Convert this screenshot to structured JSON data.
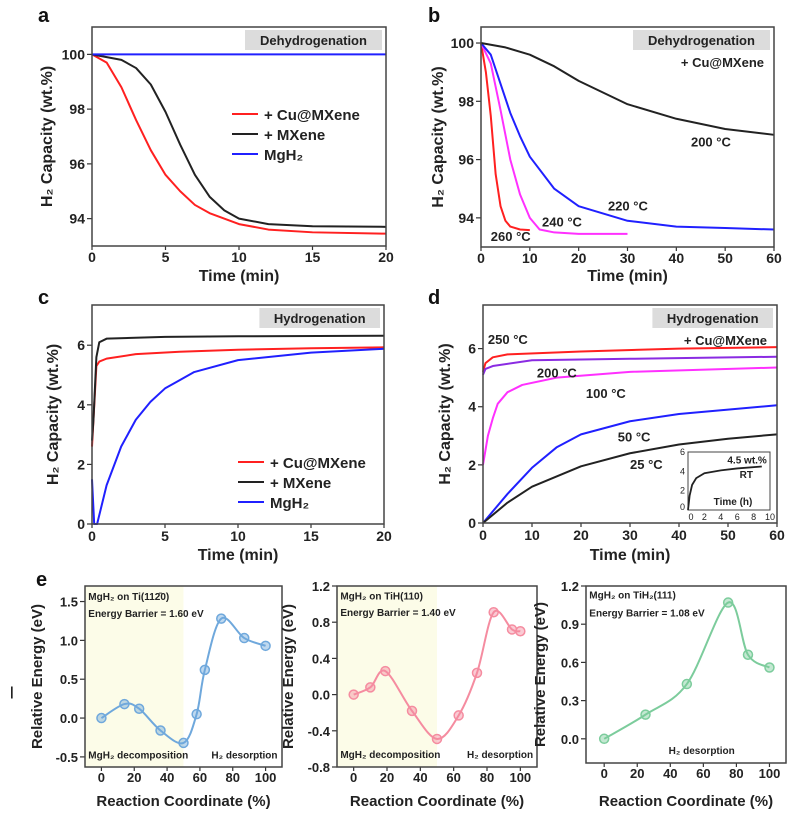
{
  "chart_data": [
    {
      "id": "a",
      "type": "line",
      "panel_label": "a",
      "xlim": [
        0,
        20
      ],
      "ylim": [
        93,
        101
      ],
      "xticks": [
        0,
        5,
        10,
        15,
        20
      ],
      "yticks": [
        94,
        96,
        98,
        100
      ],
      "xlabel": "Time (min)",
      "ylabel": "H₂ Capacity (wt.%)",
      "tag": "Dehydrogenation",
      "legend": "middle-right",
      "series": [
        {
          "name": "+ Cu@MXene",
          "color": "#ff2020",
          "points": [
            [
              0,
              100
            ],
            [
              1,
              99.7
            ],
            [
              2,
              98.8
            ],
            [
              3,
              97.6
            ],
            [
              4,
              96.5
            ],
            [
              5,
              95.6
            ],
            [
              6,
              95.0
            ],
            [
              7,
              94.5
            ],
            [
              8,
              94.2
            ],
            [
              10,
              93.8
            ],
            [
              12,
              93.6
            ],
            [
              15,
              93.5
            ],
            [
              20,
              93.45
            ]
          ]
        },
        {
          "name": "+ MXene",
          "color": "#222222",
          "points": [
            [
              0,
              100
            ],
            [
              2,
              99.8
            ],
            [
              3,
              99.5
            ],
            [
              4,
              98.9
            ],
            [
              5,
              97.9
            ],
            [
              6,
              96.7
            ],
            [
              7,
              95.6
            ],
            [
              8,
              94.8
            ],
            [
              9,
              94.3
            ],
            [
              10,
              94.0
            ],
            [
              12,
              93.8
            ],
            [
              15,
              93.72
            ],
            [
              20,
              93.7
            ]
          ]
        },
        {
          "name": "MgH₂",
          "color": "#2020ff",
          "points": [
            [
              0,
              100
            ],
            [
              20,
              100
            ]
          ]
        }
      ],
      "annotations": []
    },
    {
      "id": "b",
      "type": "line",
      "panel_label": "b",
      "xlim": [
        0,
        60
      ],
      "ylim": [
        93,
        100.55
      ],
      "xticks": [
        0,
        10,
        20,
        30,
        40,
        50,
        60
      ],
      "yticks": [
        94,
        96,
        98,
        100
      ],
      "xlabel": "Time (min)",
      "ylabel": "H₂ Capacity (wt.%)",
      "tag": "Dehydrogenation",
      "subtag": "+ Cu@MXene",
      "series": [
        {
          "name": "260 °C",
          "color": "#ff2020",
          "points": [
            [
              0,
              100
            ],
            [
              1,
              99.0
            ],
            [
              2,
              97.5
            ],
            [
              3,
              95.5
            ],
            [
              4,
              94.4
            ],
            [
              5,
              93.9
            ],
            [
              6,
              93.7
            ],
            [
              8,
              93.6
            ],
            [
              10,
              93.58
            ]
          ]
        },
        {
          "name": "240 °C",
          "color": "#ff30ff",
          "points": [
            [
              0,
              100
            ],
            [
              2,
              99.3
            ],
            [
              4,
              97.7
            ],
            [
              6,
              96.0
            ],
            [
              8,
              94.8
            ],
            [
              10,
              94.0
            ],
            [
              12,
              93.6
            ],
            [
              15,
              93.5
            ],
            [
              20,
              93.45
            ],
            [
              30,
              93.45
            ]
          ]
        },
        {
          "name": "220 °C",
          "color": "#2020ff",
          "points": [
            [
              0,
              100
            ],
            [
              2,
              99.6
            ],
            [
              4,
              98.6
            ],
            [
              6,
              97.6
            ],
            [
              8,
              96.8
            ],
            [
              10,
              96.1
            ],
            [
              15,
              95.0
            ],
            [
              20,
              94.4
            ],
            [
              30,
              93.9
            ],
            [
              40,
              93.7
            ],
            [
              50,
              93.65
            ],
            [
              60,
              93.6
            ]
          ]
        },
        {
          "name": "200 °C",
          "color": "#222222",
          "points": [
            [
              0,
              100
            ],
            [
              5,
              99.85
            ],
            [
              10,
              99.6
            ],
            [
              15,
              99.2
            ],
            [
              20,
              98.7
            ],
            [
              30,
              97.9
            ],
            [
              40,
              97.4
            ],
            [
              50,
              97.05
            ],
            [
              60,
              96.85
            ]
          ]
        }
      ],
      "annotations": [
        {
          "text": "200 °C",
          "x": 43,
          "y": 96.45
        },
        {
          "text": "220 °C",
          "x": 26,
          "y": 94.25
        },
        {
          "text": "240 °C",
          "x": 12.5,
          "y": 93.7
        },
        {
          "text": "260 °C",
          "x": 2,
          "y": 93.2
        }
      ]
    },
    {
      "id": "c",
      "type": "line",
      "panel_label": "c",
      "xlim": [
        0,
        20
      ],
      "ylim": [
        0,
        7.35
      ],
      "xticks": [
        0,
        5,
        10,
        15,
        20
      ],
      "yticks": [
        0,
        2,
        4,
        6
      ],
      "xlabel": "Time (min)",
      "ylabel": "H₂ Capacity (wt.%)",
      "tag": "Hydrogenation",
      "legend": "bottom-right",
      "series": [
        {
          "name": "+ Cu@MXene",
          "color": "#ff2020",
          "points": [
            [
              0,
              2.6
            ],
            [
              0.1,
              3.5
            ],
            [
              0.3,
              5.3
            ],
            [
              0.5,
              5.45
            ],
            [
              1,
              5.55
            ],
            [
              3,
              5.7
            ],
            [
              6,
              5.78
            ],
            [
              10,
              5.85
            ],
            [
              15,
              5.9
            ],
            [
              20,
              5.93
            ]
          ]
        },
        {
          "name": "+ MXene",
          "color": "#222222",
          "points": [
            [
              0,
              2.8
            ],
            [
              0.1,
              3.5
            ],
            [
              0.3,
              5.6
            ],
            [
              0.5,
              6.1
            ],
            [
              1,
              6.22
            ],
            [
              5,
              6.28
            ],
            [
              10,
              6.3
            ],
            [
              20,
              6.32
            ]
          ]
        },
        {
          "name": "MgH₂",
          "color": "#2020ff",
          "points": [
            [
              0,
              1.5
            ],
            [
              0.15,
              0
            ],
            [
              0.35,
              0
            ],
            [
              1,
              1.3
            ],
            [
              2,
              2.6
            ],
            [
              3,
              3.5
            ],
            [
              4,
              4.1
            ],
            [
              5,
              4.55
            ],
            [
              7,
              5.1
            ],
            [
              10,
              5.5
            ],
            [
              15,
              5.75
            ],
            [
              20,
              5.88
            ]
          ]
        }
      ],
      "annotations": []
    },
    {
      "id": "d",
      "type": "line",
      "panel_label": "d",
      "xlim": [
        0,
        60
      ],
      "ylim": [
        0,
        7.5
      ],
      "xticks": [
        0,
        10,
        20,
        30,
        40,
        50,
        60
      ],
      "yticks": [
        0,
        2,
        4,
        6
      ],
      "xlabel": "Time (min)",
      "ylabel": "H₂ Capacity (wt.%)",
      "tag": "Hydrogenation",
      "subtag": "+ Cu@MXene",
      "series": [
        {
          "name": "250 °C",
          "color": "#ff2020",
          "points": [
            [
              0,
              5.2
            ],
            [
              0.5,
              5.5
            ],
            [
              2,
              5.7
            ],
            [
              5,
              5.8
            ],
            [
              20,
              5.9
            ],
            [
              40,
              6.0
            ],
            [
              60,
              6.05
            ]
          ]
        },
        {
          "name": "200 °C",
          "color": "#8a2be2",
          "points": [
            [
              0,
              5.1
            ],
            [
              0.5,
              5.3
            ],
            [
              2,
              5.4
            ],
            [
              10,
              5.6
            ],
            [
              30,
              5.65
            ],
            [
              60,
              5.72
            ]
          ]
        },
        {
          "name": "100 °C",
          "color": "#ff30ff",
          "points": [
            [
              0,
              2.0
            ],
            [
              1,
              3.0
            ],
            [
              2,
              3.6
            ],
            [
              3,
              4.1
            ],
            [
              5,
              4.5
            ],
            [
              8,
              4.75
            ],
            [
              15,
              5.0
            ],
            [
              30,
              5.2
            ],
            [
              60,
              5.35
            ]
          ]
        },
        {
          "name": "50 °C",
          "color": "#2020ff",
          "points": [
            [
              0,
              0
            ],
            [
              5,
              1.0
            ],
            [
              10,
              1.9
            ],
            [
              15,
              2.6
            ],
            [
              20,
              3.05
            ],
            [
              30,
              3.5
            ],
            [
              40,
              3.75
            ],
            [
              60,
              4.05
            ]
          ]
        },
        {
          "name": "25 °C",
          "color": "#222222",
          "points": [
            [
              0,
              0
            ],
            [
              5,
              0.7
            ],
            [
              10,
              1.25
            ],
            [
              20,
              1.95
            ],
            [
              30,
              2.4
            ],
            [
              40,
              2.7
            ],
            [
              50,
              2.9
            ],
            [
              60,
              3.05
            ]
          ]
        }
      ],
      "annotations": [
        {
          "text": "250 °C",
          "x": 1,
          "y": 6.15
        },
        {
          "text": "200 °C",
          "x": 11,
          "y": 5.0
        },
        {
          "text": "100 °C",
          "x": 21,
          "y": 4.3
        },
        {
          "text": "50 °C",
          "x": 27.5,
          "y": 2.8
        },
        {
          "text": "25 °C",
          "x": 30,
          "y": 1.85
        }
      ],
      "inset": {
        "xlim": [
          0,
          10
        ],
        "ylim": [
          0,
          6
        ],
        "xticks": [
          0,
          2,
          4,
          6,
          8,
          10
        ],
        "yticks": [
          0,
          2,
          4,
          6
        ],
        "xlabel": "Time (h)",
        "series": [
          {
            "color": "#222222",
            "points": [
              [
                0,
                0
              ],
              [
                0.2,
                1.5
              ],
              [
                0.5,
                2.6
              ],
              [
                1,
                3.3
              ],
              [
                2,
                3.8
              ],
              [
                4,
                4.1
              ],
              [
                6,
                4.3
              ],
              [
                9,
                4.5
              ]
            ]
          }
        ],
        "annotations": [
          {
            "text": "4.5 wt.%",
            "x": 4.8,
            "y": 4.8
          },
          {
            "text": "RT",
            "x": 6.3,
            "y": 3.3
          }
        ]
      }
    },
    {
      "id": "e1",
      "type": "line",
      "panel_label": "e",
      "xlim": [
        -10,
        110
      ],
      "ylim": [
        -0.63,
        1.7
      ],
      "xticks": [
        0,
        20,
        40,
        60,
        80,
        100
      ],
      "yticks": [
        -0.5,
        0.0,
        0.5,
        1.0,
        1.5
      ],
      "ytick_format": 1,
      "xlabel": "Reaction Coordinate (%)",
      "ylabel": "Relative Energy (eV)",
      "shaded_region": [
        -10,
        50
      ],
      "shade_color": "#fcfce8",
      "series": [
        {
          "color": "#6fa8dc",
          "points": [
            [
              0,
              0
            ],
            [
              14,
              0.18
            ],
            [
              23,
              0.12
            ],
            [
              36,
              -0.16
            ],
            [
              50,
              -0.32
            ],
            [
              58,
              0.05
            ],
            [
              63,
              0.62
            ],
            [
              73,
              1.28
            ],
            [
              87,
              1.03
            ],
            [
              100,
              0.93
            ]
          ]
        }
      ],
      "annotations": [
        {
          "text": "MgH₂ on Ti(112̄0)",
          "x": -8,
          "y": 1.52
        },
        {
          "text": "Energy Barrier = 1.60 eV",
          "x": -8,
          "y": 1.3
        },
        {
          "text": "MgH₂ decomposition",
          "x": -8,
          "y": -0.52
        },
        {
          "text": "H₂ desorption",
          "x": 67,
          "y": -0.52
        }
      ]
    },
    {
      "id": "e2",
      "type": "line",
      "xlim": [
        -10,
        110
      ],
      "ylim": [
        -0.8,
        1.2
      ],
      "xticks": [
        0,
        20,
        40,
        60,
        80,
        100
      ],
      "yticks": [
        -0.8,
        -0.4,
        0.0,
        0.4,
        0.8,
        1.2
      ],
      "ytick_format": 1,
      "xlabel": "Reaction Coordinate (%)",
      "ylabel": "Relative Energy (eV)",
      "shaded_region": [
        -10,
        50
      ],
      "shade_color": "#fcfce8",
      "series": [
        {
          "color": "#f58ca0",
          "points": [
            [
              0,
              0
            ],
            [
              10,
              0.08
            ],
            [
              19,
              0.26
            ],
            [
              35,
              -0.18
            ],
            [
              50,
              -0.49
            ],
            [
              63,
              -0.23
            ],
            [
              74,
              0.24
            ],
            [
              84,
              0.91
            ],
            [
              95,
              0.72
            ],
            [
              100,
              0.7
            ]
          ]
        }
      ],
      "annotations": [
        {
          "text": "MgH₂ on TiH(110)",
          "x": -8,
          "y": 1.05
        },
        {
          "text": "Energy Barrier = 1.40 eV",
          "x": -8,
          "y": 0.87
        },
        {
          "text": "MgH₂ decomposition",
          "x": -8,
          "y": -0.7
        },
        {
          "text": "H₂ desorption",
          "x": 68,
          "y": -0.7
        }
      ]
    },
    {
      "id": "e3",
      "type": "line",
      "xlim": [
        -11,
        110
      ],
      "ylim": [
        -0.19,
        1.2
      ],
      "xticks": [
        0,
        20,
        40,
        60,
        80,
        100
      ],
      "yticks": [
        0.0,
        0.3,
        0.6,
        0.9,
        1.2
      ],
      "ytick_format": 1,
      "xlabel": "Reaction Coordinate (%)",
      "ylabel": "Relative Energy (eV)",
      "series": [
        {
          "color": "#7ccc9c",
          "points": [
            [
              0,
              0
            ],
            [
              25,
              0.19
            ],
            [
              50,
              0.43
            ],
            [
              75,
              1.07
            ],
            [
              87,
              0.66
            ],
            [
              100,
              0.56
            ]
          ]
        }
      ],
      "annotations": [
        {
          "text": "MgH₂ on TiH₂(111)",
          "x": -9,
          "y": 1.1
        },
        {
          "text": "Energy Barrier = 1.08 eV",
          "x": -9,
          "y": 0.96
        },
        {
          "text": "H₂ desorption",
          "x": 39,
          "y": -0.12
        }
      ]
    }
  ],
  "stray_mark": "|"
}
